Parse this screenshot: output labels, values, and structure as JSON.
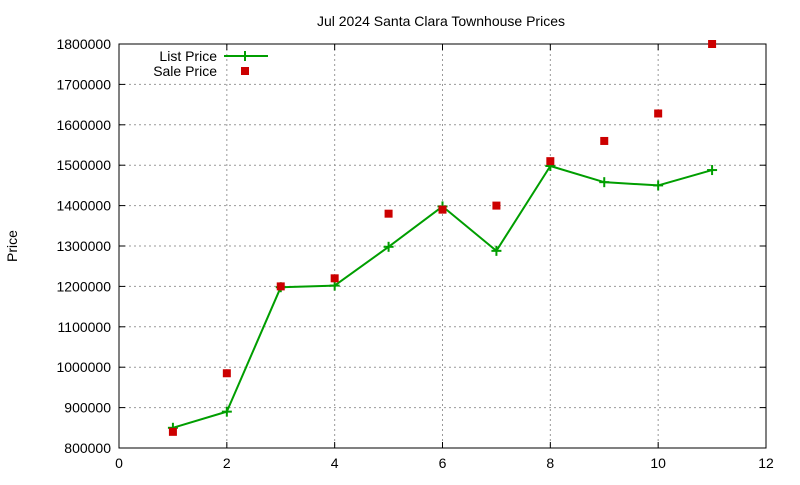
{
  "chart_data": {
    "type": "line",
    "title": "Jul 2024 Santa Clara Townhouse Prices",
    "xlabel": "",
    "ylabel": "Price",
    "xlim": [
      0,
      12
    ],
    "ylim": [
      800000,
      1800000
    ],
    "xticks": [
      0,
      2,
      4,
      6,
      8,
      10,
      12
    ],
    "yticks": [
      800000,
      900000,
      1000000,
      1100000,
      1200000,
      1300000,
      1400000,
      1500000,
      1600000,
      1700000,
      1800000
    ],
    "grid": true,
    "legend_position": "top-left",
    "series": [
      {
        "name": "List Price",
        "style": "line-with-plus-markers",
        "color": "#009e00",
        "x": [
          1,
          2,
          3,
          4,
          5,
          6,
          7,
          8,
          9,
          10,
          11
        ],
        "values": [
          850000,
          890000,
          1198000,
          1202000,
          1298000,
          1398000,
          1288000,
          1498000,
          1458000,
          1450000,
          1488000
        ]
      },
      {
        "name": "Sale Price",
        "style": "square-markers",
        "color": "#cc0000",
        "x": [
          1,
          2,
          3,
          4,
          5,
          6,
          7,
          8,
          9,
          10,
          11
        ],
        "values": [
          840000,
          985000,
          1200000,
          1220000,
          1380000,
          1390000,
          1400000,
          1510000,
          1560000,
          1628000,
          1800000
        ]
      }
    ]
  }
}
